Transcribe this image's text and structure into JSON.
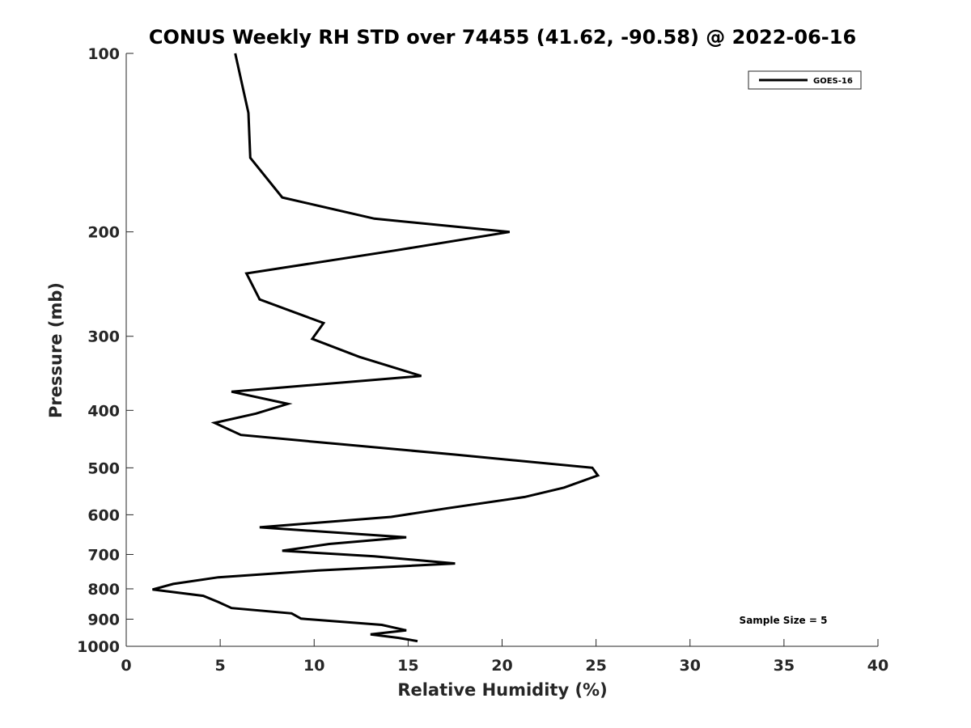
{
  "chart_data": {
    "type": "line",
    "title": "CONUS Weekly RH STD over 74455 (41.62, -90.58) @ 2022-06-16",
    "xlabel": "Relative Humidity (%)",
    "ylabel": "Pressure (mb)",
    "xlim": [
      0,
      40
    ],
    "ylim": [
      100,
      1000
    ],
    "yscale": "log",
    "y_reversed": true,
    "x_ticks": [
      0,
      5,
      10,
      15,
      20,
      25,
      30,
      35,
      40
    ],
    "x_tick_labels": [
      "0",
      "5",
      "10",
      "15",
      "20",
      "25",
      "30",
      "35",
      "40"
    ],
    "y_ticks": [
      100,
      200,
      300,
      400,
      500,
      600,
      700,
      800,
      900,
      1000
    ],
    "y_tick_labels": [
      "100",
      "200",
      "300",
      "400",
      "500",
      "600",
      "700",
      "800",
      "900",
      "1000"
    ],
    "grid": false,
    "legend_position": "top-right",
    "annotation": "Sample Size = 5",
    "series": [
      {
        "name": "GOES-16",
        "color": "#000000",
        "points": [
          [
            5.8,
            100
          ],
          [
            6.5,
            126
          ],
          [
            6.6,
            150
          ],
          [
            8.3,
            175
          ],
          [
            13.2,
            190
          ],
          [
            20.4,
            200
          ],
          [
            14.3,
            215
          ],
          [
            6.4,
            235
          ],
          [
            7.1,
            260
          ],
          [
            10.5,
            285
          ],
          [
            9.9,
            303
          ],
          [
            12.4,
            325
          ],
          [
            15.7,
            350
          ],
          [
            5.6,
            372
          ],
          [
            8.6,
            390
          ],
          [
            6.9,
            405
          ],
          [
            4.7,
            420
          ],
          [
            6.1,
            440
          ],
          [
            11.0,
            455
          ],
          [
            17.5,
            475
          ],
          [
            24.8,
            500
          ],
          [
            25.1,
            515
          ],
          [
            23.3,
            540
          ],
          [
            21.2,
            560
          ],
          [
            17.1,
            585
          ],
          [
            14.1,
            605
          ],
          [
            7.1,
            630
          ],
          [
            14.9,
            655
          ],
          [
            10.8,
            672
          ],
          [
            8.3,
            690
          ],
          [
            13.2,
            705
          ],
          [
            17.5,
            725
          ],
          [
            10.2,
            745
          ],
          [
            4.9,
            765
          ],
          [
            2.5,
            785
          ],
          [
            1.4,
            802
          ],
          [
            4.1,
            822
          ],
          [
            4.9,
            842
          ],
          [
            5.6,
            862
          ],
          [
            8.8,
            880
          ],
          [
            9.3,
            898
          ],
          [
            13.6,
            920
          ],
          [
            14.9,
            940
          ],
          [
            13.0,
            955
          ],
          [
            14.5,
            968
          ],
          [
            15.5,
            980
          ]
        ]
      }
    ]
  }
}
